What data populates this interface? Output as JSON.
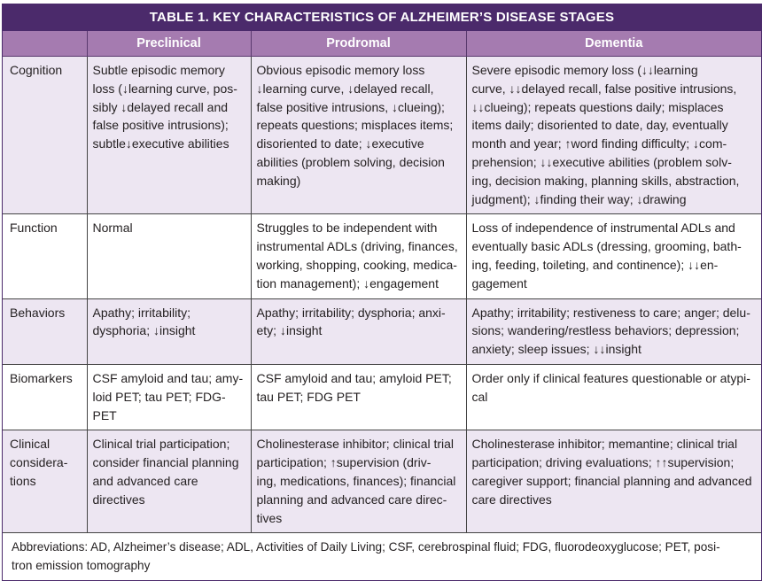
{
  "title": "TABLE 1. KEY CHARACTERISTICS OF ALZHEIMER’S DISEASE STAGES",
  "columns": [
    "",
    "Preclinical",
    "Prodromal",
    "Dementia"
  ],
  "rows": [
    {
      "label": "Cognition",
      "cells": [
        "Subtle episodic memory\nloss (↓learning curve, pos-\nsibly ↓delayed recall and\nfalse positive intrusions);\nsubtle↓executive abilities",
        "Obvious episodic memory loss\n↓learning curve, ↓delayed recall,\nfalse positive intrusions, ↓clueing);\nrepeats questions; misplaces items;\ndisoriented to date; ↓executive\nabilities (problem solving, decision\nmaking)",
        "Severe episodic memory loss (↓↓learning\ncurve, ↓↓delayed recall, false positive intrusions,\n↓↓clueing); repeats questions daily; misplaces\nitems daily; disoriented to date, day, eventually\nmonth and year; ↑word finding difficulty; ↓com-\nprehension; ↓↓executive abilities (problem solv-\ning, decision making, planning skills, abstraction,\njudgment); ↓finding their way; ↓drawing"
      ]
    },
    {
      "label": "Function",
      "cells": [
        "Normal",
        "Struggles to be independent with\ninstrumental ADLs (driving, finances,\nworking, shopping, cooking, medica-\ntion management); ↓engagement",
        "Loss of independence of instrumental ADLs and\neventually basic ADLs (dressing, grooming, bath-\ning, feeding, toileting, and continence); ↓↓en-\ngagement"
      ]
    },
    {
      "label": "Behaviors",
      "cells": [
        "Apathy; irritability;\ndysphoria; ↓insight",
        "Apathy; irritability; dysphoria; anxi-\nety; ↓insight",
        "Apathy; irritability; restiveness to care; anger; delu-\nsions; wandering/restless behaviors; depression;\nanxiety; sleep issues; ↓↓insight"
      ]
    },
    {
      "label": "Biomarkers",
      "cells": [
        "CSF amyloid and tau; amy-\nloid PET; tau PET; FDG-PET",
        "CSF amyloid and tau; amyloid PET;\ntau PET; FDG PET",
        "Order only if clinical features questionable or atypi-\ncal"
      ]
    },
    {
      "label": "Clinical\nconsidera-\ntions",
      "cells": [
        "Clinical trial participation;\nconsider financial planning\nand advanced care directives",
        "Cholinesterase inhibitor; clinical trial\nparticipation; ↑supervision (driv-\ning, medications, finances); financial\nplanning and advanced care direc-\ntives",
        "Cholinesterase inhibitor; memantine; clinical trial\nparticipation; driving evaluations; ↑↑supervision;\ncaregiver support; financial planning and advanced\ncare directives"
      ]
    }
  ],
  "footnote": "Abbreviations: AD, Alzheimer’s disease; ADL, Activities of Daily Living; CSF, cerebrospinal fluid; FDG, fluorodeoxyglucose; PET, posi-\ntron emission tomography",
  "colors": {
    "title_bg": "#4b2a6b",
    "header_bg": "#a57bb0",
    "alt_row": "#ede6f2"
  }
}
